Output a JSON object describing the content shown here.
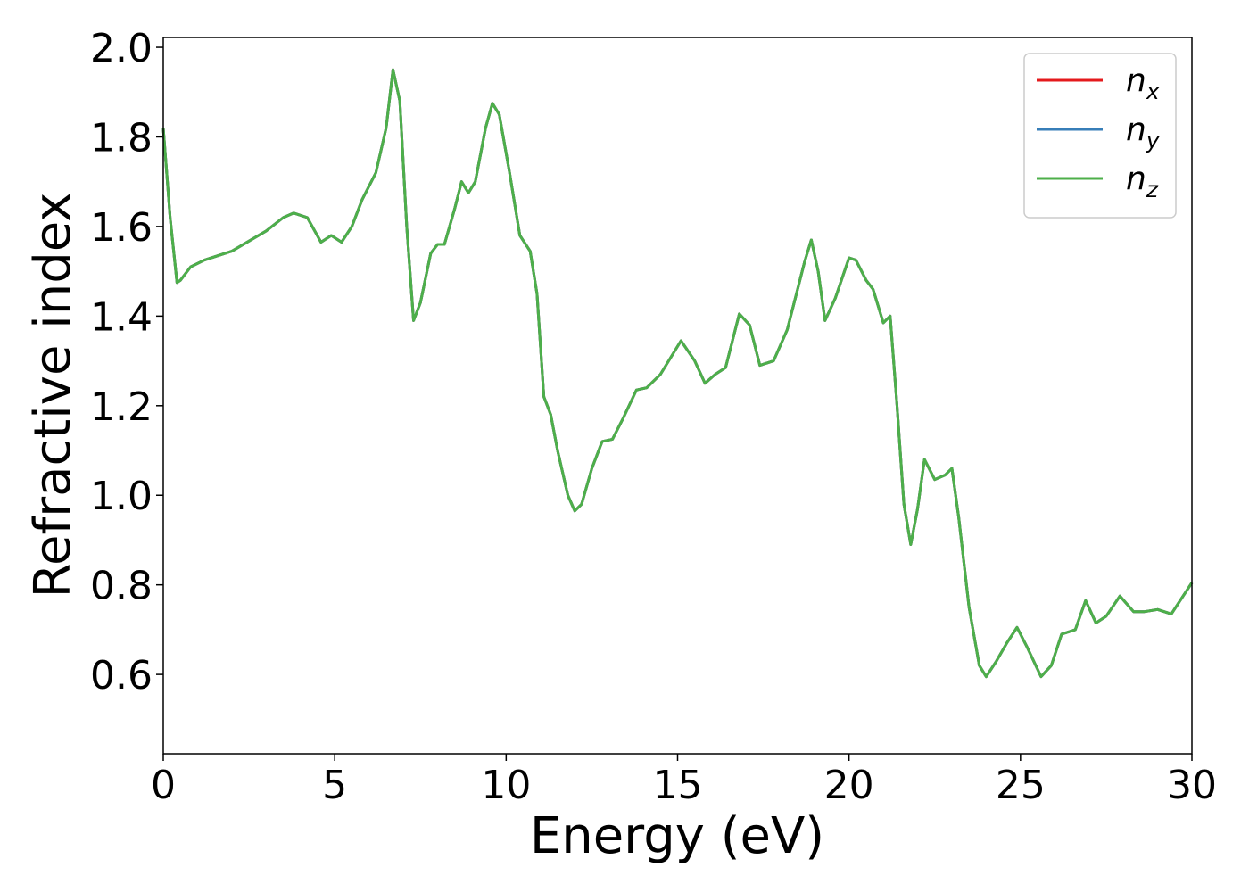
{
  "chart_data": {
    "type": "line",
    "xlabel": "Energy (eV)",
    "ylabel": "Refractive index",
    "x": [
      0,
      0.2,
      0.4,
      0.5,
      0.8,
      1.2,
      2,
      3,
      3.5,
      3.8,
      4.2,
      4.6,
      4.9,
      5.2,
      5.5,
      5.8,
      6.2,
      6.5,
      6.7,
      6.9,
      7.1,
      7.3,
      7.5,
      7.8,
      8.0,
      8.2,
      8.5,
      8.7,
      8.9,
      9.1,
      9.4,
      9.6,
      9.8,
      10.1,
      10.4,
      10.7,
      10.9,
      11.1,
      11.3,
      11.5,
      11.8,
      12.0,
      12.2,
      12.5,
      12.8,
      13.1,
      13.4,
      13.8,
      14.1,
      14.5,
      15.1,
      15.5,
      15.8,
      16.1,
      16.4,
      16.8,
      17.1,
      17.4,
      17.8,
      18.2,
      18.7,
      18.9,
      19.1,
      19.3,
      19.6,
      20.0,
      20.2,
      20.5,
      20.7,
      21.0,
      21.2,
      21.4,
      21.6,
      21.8,
      22.0,
      22.2,
      22.5,
      22.8,
      23.0,
      23.2,
      23.5,
      23.8,
      24.0,
      24.3,
      24.6,
      24.9,
      25.2,
      25.6,
      25.9,
      26.2,
      26.6,
      26.9,
      27.2,
      27.5,
      27.9,
      28.3,
      28.6,
      29.0,
      29.4,
      30
    ],
    "series": [
      {
        "name": "nx",
        "color": "#e41a1c",
        "values": [
          1.82,
          1.62,
          1.475,
          1.48,
          1.51,
          1.525,
          1.545,
          1.59,
          1.62,
          1.63,
          1.62,
          1.565,
          1.58,
          1.565,
          1.6,
          1.66,
          1.72,
          1.82,
          1.95,
          1.88,
          1.6,
          1.39,
          1.43,
          1.54,
          1.56,
          1.56,
          1.64,
          1.7,
          1.675,
          1.7,
          1.82,
          1.875,
          1.85,
          1.72,
          1.58,
          1.545,
          1.45,
          1.22,
          1.18,
          1.1,
          1.0,
          0.965,
          0.98,
          1.06,
          1.12,
          1.125,
          1.17,
          1.235,
          1.24,
          1.27,
          1.345,
          1.3,
          1.25,
          1.27,
          1.285,
          1.405,
          1.38,
          1.29,
          1.3,
          1.37,
          1.52,
          1.57,
          1.5,
          1.39,
          1.44,
          1.53,
          1.525,
          1.48,
          1.46,
          1.385,
          1.4,
          1.2,
          0.98,
          0.89,
          0.97,
          1.08,
          1.035,
          1.045,
          1.06,
          0.95,
          0.75,
          0.62,
          0.595,
          0.63,
          0.67,
          0.705,
          0.66,
          0.595,
          0.62,
          0.69,
          0.7,
          0.765,
          0.715,
          0.73,
          0.775,
          0.74,
          0.74,
          0.745,
          0.735,
          0.805
        ]
      },
      {
        "name": "ny",
        "color": "#377eb8",
        "values": [
          1.82,
          1.62,
          1.475,
          1.48,
          1.51,
          1.525,
          1.545,
          1.59,
          1.62,
          1.63,
          1.62,
          1.565,
          1.58,
          1.565,
          1.6,
          1.66,
          1.72,
          1.82,
          1.95,
          1.88,
          1.6,
          1.39,
          1.43,
          1.54,
          1.56,
          1.56,
          1.64,
          1.7,
          1.675,
          1.7,
          1.82,
          1.875,
          1.85,
          1.72,
          1.58,
          1.545,
          1.45,
          1.22,
          1.18,
          1.1,
          1.0,
          0.965,
          0.98,
          1.06,
          1.12,
          1.125,
          1.17,
          1.235,
          1.24,
          1.27,
          1.345,
          1.3,
          1.25,
          1.27,
          1.285,
          1.405,
          1.38,
          1.29,
          1.3,
          1.37,
          1.52,
          1.57,
          1.5,
          1.39,
          1.44,
          1.53,
          1.525,
          1.48,
          1.46,
          1.385,
          1.4,
          1.2,
          0.98,
          0.89,
          0.97,
          1.08,
          1.035,
          1.045,
          1.06,
          0.95,
          0.75,
          0.62,
          0.595,
          0.63,
          0.67,
          0.705,
          0.66,
          0.595,
          0.62,
          0.69,
          0.7,
          0.765,
          0.715,
          0.73,
          0.775,
          0.74,
          0.74,
          0.745,
          0.735,
          0.805
        ]
      },
      {
        "name": "nz",
        "color": "#4daf4a",
        "values": [
          1.82,
          1.62,
          1.475,
          1.48,
          1.51,
          1.525,
          1.545,
          1.59,
          1.62,
          1.63,
          1.62,
          1.565,
          1.58,
          1.565,
          1.6,
          1.66,
          1.72,
          1.82,
          1.95,
          1.88,
          1.6,
          1.39,
          1.43,
          1.54,
          1.56,
          1.56,
          1.64,
          1.7,
          1.675,
          1.7,
          1.82,
          1.875,
          1.85,
          1.72,
          1.58,
          1.545,
          1.45,
          1.22,
          1.18,
          1.1,
          1.0,
          0.965,
          0.98,
          1.06,
          1.12,
          1.125,
          1.17,
          1.235,
          1.24,
          1.27,
          1.345,
          1.3,
          1.25,
          1.27,
          1.285,
          1.405,
          1.38,
          1.29,
          1.3,
          1.37,
          1.52,
          1.57,
          1.5,
          1.39,
          1.44,
          1.53,
          1.525,
          1.48,
          1.46,
          1.385,
          1.4,
          1.2,
          0.98,
          0.89,
          0.97,
          1.08,
          1.035,
          1.045,
          1.06,
          0.95,
          0.75,
          0.62,
          0.595,
          0.63,
          0.67,
          0.705,
          0.66,
          0.595,
          0.62,
          0.69,
          0.7,
          0.765,
          0.715,
          0.73,
          0.775,
          0.74,
          0.74,
          0.745,
          0.735,
          0.805
        ]
      }
    ],
    "xlim": [
      0,
      30
    ],
    "xticks": [
      0,
      5,
      10,
      15,
      20,
      25,
      30
    ],
    "ylim": [
      0.423,
      2.022
    ],
    "yticks": [
      0.6,
      0.8,
      {
        "value": 1,
        "label": "1.0"
      },
      1.2,
      1.4,
      1.6,
      1.8,
      {
        "value": 2,
        "label": "2.0"
      }
    ],
    "grid": false,
    "legend": "upper right"
  }
}
